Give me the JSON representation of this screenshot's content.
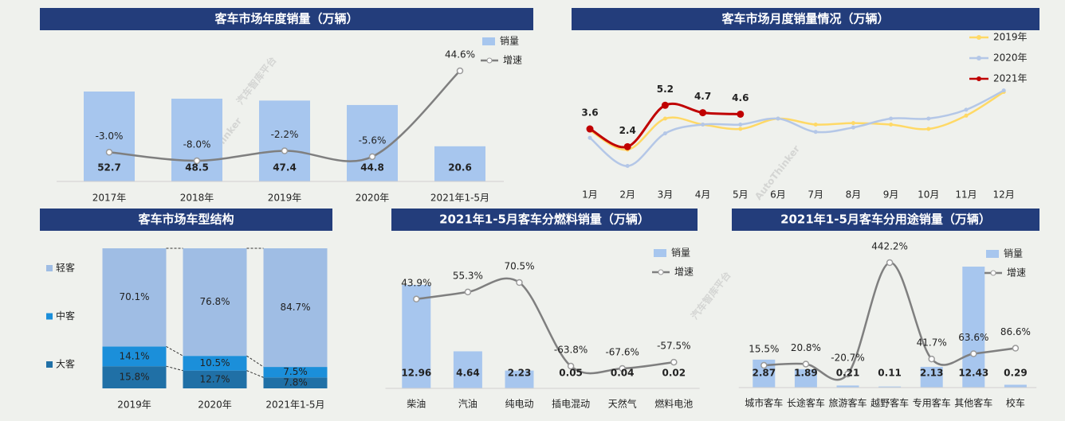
{
  "watermark": [
    "AutoThinker",
    "汽车智库平台"
  ],
  "chart_data": [
    {
      "type": "combo",
      "title": "客车市场年度销量（万辆）",
      "categories": [
        "2017年",
        "2018年",
        "2019年",
        "2020年",
        "2021年1-5月"
      ],
      "series": [
        {
          "name": "销量",
          "color": "#a7c6ee",
          "values": [
            52.7,
            48.5,
            47.4,
            44.8,
            20.6
          ]
        },
        {
          "name": "增速",
          "color": "#7f7f7f",
          "values": [
            -3.0,
            -8.0,
            -2.2,
            -5.6,
            44.6
          ],
          "value_labels": [
            "-3.0%",
            "-8.0%",
            "-2.2%",
            "-5.6%",
            "44.6%"
          ]
        }
      ]
    },
    {
      "type": "line",
      "title": "客车市场月度销量情况（万辆）",
      "categories": [
        "1月",
        "2月",
        "3月",
        "4月",
        "5月",
        "6月",
        "7月",
        "8月",
        "9月",
        "10月",
        "11月",
        "12月"
      ],
      "series": [
        {
          "name": "2019年",
          "color": "#ffd966",
          "values": [
            3.5,
            2.2,
            4.3,
            3.9,
            3.6,
            4.3,
            3.9,
            4.0,
            3.9,
            3.6,
            4.5,
            6.1
          ]
        },
        {
          "name": "2020年",
          "color": "#b4c7e7",
          "values": [
            3.0,
            1.1,
            3.3,
            3.9,
            3.9,
            4.3,
            3.4,
            3.7,
            4.3,
            4.3,
            4.9,
            6.2
          ]
        },
        {
          "name": "2021年",
          "color": "#c00000",
          "values": [
            3.6,
            2.4,
            5.2,
            4.7,
            4.6,
            null,
            null,
            null,
            null,
            null,
            null,
            null
          ]
        }
      ]
    },
    {
      "type": "stacked_bar",
      "title": "客车市场车型结构",
      "categories": [
        "2019年",
        "2020年",
        "2021年1-5月"
      ],
      "series": [
        {
          "name": "大客",
          "color": "#2070a6",
          "values": [
            15.8,
            12.7,
            7.8
          ],
          "value_labels": [
            "15.8%",
            "12.7%",
            "7.8%"
          ]
        },
        {
          "name": "中客",
          "color": "#1b8fda",
          "values": [
            14.1,
            10.5,
            7.5
          ],
          "value_labels": [
            "14.1%",
            "10.5%",
            "7.5%"
          ]
        },
        {
          "name": "轻客",
          "color": "#9fbde4",
          "values": [
            70.1,
            76.8,
            84.7
          ],
          "value_labels": [
            "70.1%",
            "76.8%",
            "84.7%"
          ]
        }
      ]
    },
    {
      "type": "combo",
      "title": "2021年1-5月客车分燃料销量（万辆）",
      "categories": [
        "柴油",
        "汽油",
        "纯电动",
        "插电混动",
        "天然气",
        "燃料电池"
      ],
      "series": [
        {
          "name": "销量",
          "color": "#a7c6ee",
          "values": [
            12.96,
            4.64,
            2.23,
            0.05,
            0.04,
            0.02
          ]
        },
        {
          "name": "增速",
          "color": "#7f7f7f",
          "values": [
            43.9,
            55.3,
            70.5,
            -63.8,
            -67.6,
            -57.5
          ],
          "value_labels": [
            "43.9%",
            "55.3%",
            "70.5%",
            "-63.8%",
            "-67.6%",
            "-57.5%"
          ]
        }
      ]
    },
    {
      "type": "combo",
      "title": "2021年1-5月客车分用途销量（万辆）",
      "categories": [
        "城市客车",
        "长途客车",
        "旅游客车",
        "越野客车",
        "专用客车",
        "其他客车",
        "校车"
      ],
      "series": [
        {
          "name": "销量",
          "color": "#a7c6ee",
          "values": [
            2.87,
            1.89,
            0.21,
            0.11,
            2.13,
            12.43,
            0.29
          ]
        },
        {
          "name": "增速",
          "color": "#7f7f7f",
          "values": [
            15.5,
            20.8,
            -20.7,
            442.2,
            41.7,
            63.6,
            86.6
          ],
          "value_labels": [
            "15.5%",
            "20.8%",
            "-20.7%",
            "442.2%",
            "41.7%",
            "63.6%",
            "86.6%"
          ]
        }
      ]
    }
  ]
}
